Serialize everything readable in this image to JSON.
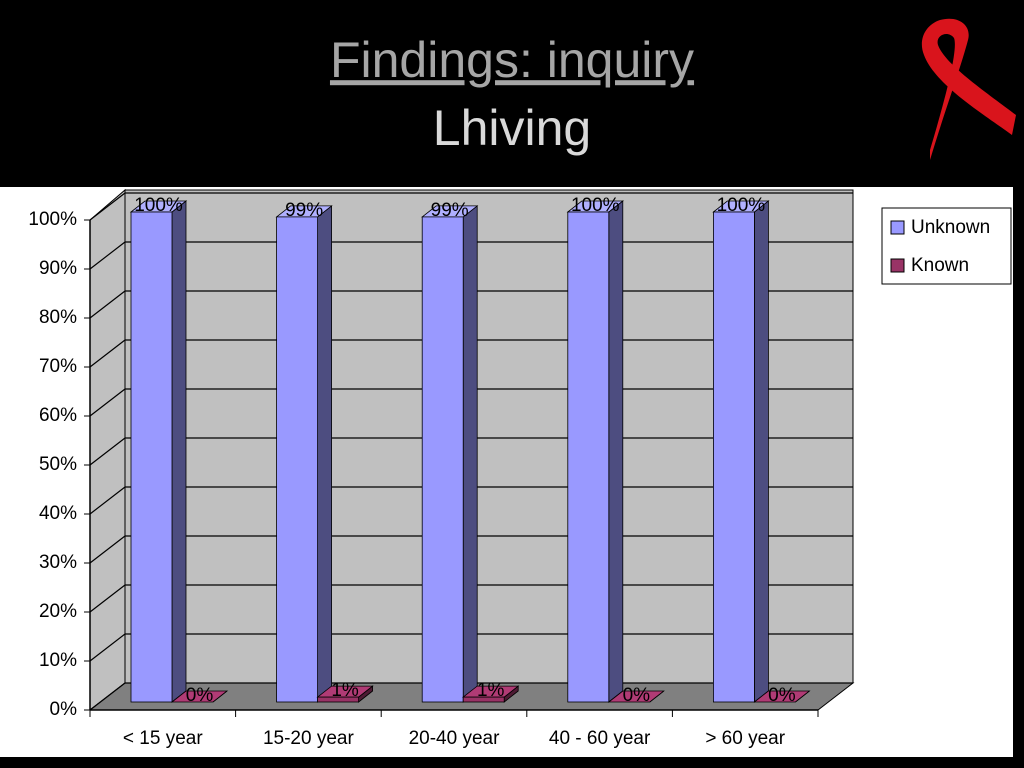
{
  "chart_data": {
    "type": "bar3d",
    "title": "Findings: inquiry",
    "subtitle": "Lhiving",
    "categories": [
      "< 15 year",
      "15-20 year",
      "20-40 year",
      "40 - 60 year",
      "> 60 year"
    ],
    "series": [
      {
        "name": "Unknown",
        "color": "#9999ff",
        "values": [
          100,
          99,
          99,
          100,
          100
        ],
        "value_labels": [
          "100%",
          "99%",
          "99%",
          "100%",
          "100%"
        ]
      },
      {
        "name": "Known",
        "color": "#993366",
        "values": [
          0,
          1,
          1,
          0,
          0
        ],
        "value_labels": [
          "0%",
          "1%",
          "1%",
          "0%",
          "0%"
        ]
      }
    ],
    "ylim": [
      0,
      100
    ],
    "yticks": [
      {
        "value": 0,
        "label": "0%"
      },
      {
        "value": 10,
        "label": "10%"
      },
      {
        "value": 20,
        "label": "20%"
      },
      {
        "value": 30,
        "label": "30%"
      },
      {
        "value": 40,
        "label": "40%"
      },
      {
        "value": 50,
        "label": "50%"
      },
      {
        "value": 60,
        "label": "60%"
      },
      {
        "value": 70,
        "label": "70%"
      },
      {
        "value": 80,
        "label": "80%"
      },
      {
        "value": 90,
        "label": "90%"
      },
      {
        "value": 100,
        "label": "100%"
      }
    ],
    "grid": true,
    "legend": "right"
  }
}
